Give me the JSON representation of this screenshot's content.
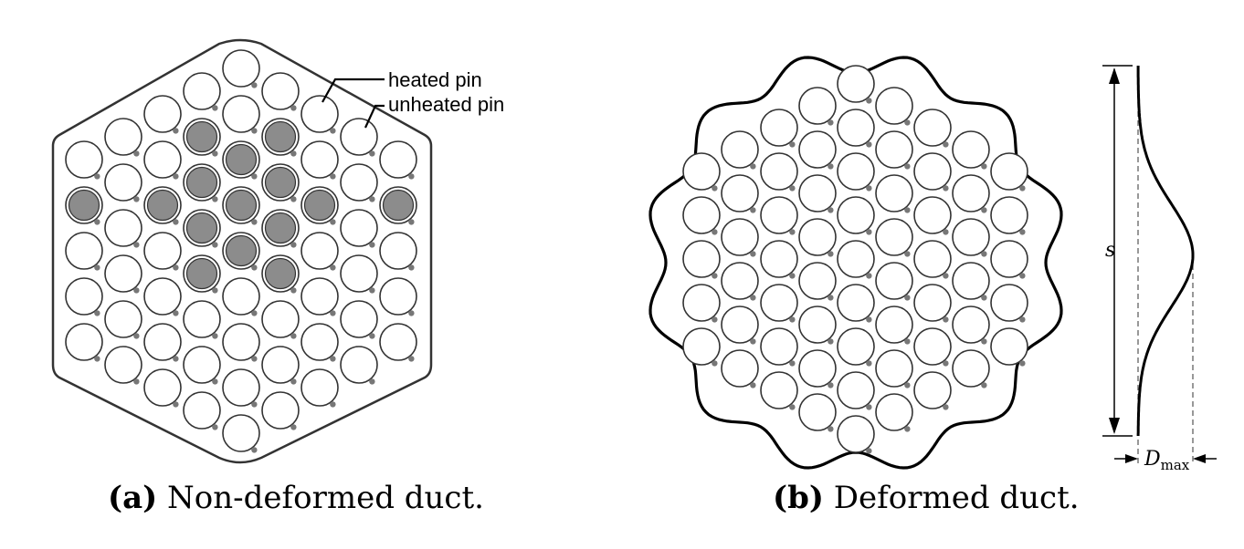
{
  "panel_a": {
    "caption_letter": "(a)",
    "caption_text": "Non-deformed duct.",
    "label_heated": "heated pin",
    "label_unheated": "unheated pin"
  },
  "panel_b": {
    "caption_letter": "(b)",
    "caption_text": "Deformed duct.",
    "dim_s": "s",
    "dim_d": "D",
    "dim_d_sub": "max"
  },
  "colors": {
    "heated_fill": "#8c8c8c",
    "pin_outline": "#333333",
    "wire": "#777777",
    "duct": "#333333"
  }
}
